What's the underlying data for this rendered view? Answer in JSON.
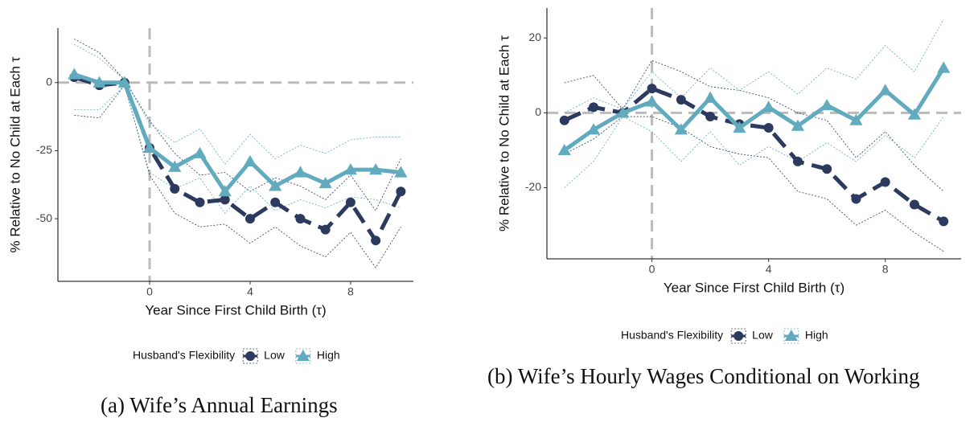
{
  "chart_data": [
    {
      "type": "line",
      "caption": "(a) Wife’s Annual Earnings",
      "x_label": "Year Since First Child Birth (τ)",
      "y_label": "% Relative to No Child at Each τ",
      "legend_title": "Husband's Flexibility",
      "x": [
        -3,
        -2,
        -1,
        0,
        1,
        2,
        3,
        4,
        5,
        6,
        7,
        8,
        9,
        10
      ],
      "xlim": [
        -3.65,
        10.5
      ],
      "ylim": [
        -73,
        20
      ],
      "xticks": [
        0,
        4,
        8
      ],
      "yticks": [
        -50,
        -25,
        0
      ],
      "vline": 0,
      "hline": 0,
      "series": [
        {
          "name": "Low",
          "color": "#2b3a5e",
          "marker": "circle",
          "linestyle": "dashed",
          "values": [
            2,
            -1,
            0,
            -24,
            -39,
            -44,
            -43,
            -50,
            -44,
            -50,
            -54,
            -44,
            -58,
            -40
          ],
          "upper": [
            16,
            11,
            1,
            -14,
            -26,
            -34,
            -33,
            -40,
            -35,
            -38,
            -43,
            -34,
            -47,
            -28
          ],
          "lower": [
            -12,
            -13,
            -1,
            -34,
            -48,
            -53,
            -52,
            -59,
            -53,
            -60,
            -64,
            -55,
            -68,
            -53
          ]
        },
        {
          "name": "High",
          "color": "#62abbe",
          "marker": "triangle",
          "linestyle": "solid",
          "values": [
            3,
            0,
            0,
            -24,
            -31,
            -26,
            -40,
            -29,
            -38,
            -33,
            -37,
            -32,
            -32,
            -33
          ],
          "upper": [
            14,
            9,
            1,
            -15,
            -22,
            -17,
            -30,
            -19,
            -28,
            -23,
            -26,
            -21,
            -20,
            -20
          ],
          "lower": [
            -10,
            -10,
            -1,
            -33,
            -39,
            -35,
            -48,
            -38,
            -47,
            -43,
            -46,
            -42,
            -43,
            -46
          ]
        }
      ]
    },
    {
      "type": "line",
      "caption": "(b) Wife’s Hourly Wages Conditional on Working",
      "x_label": "Year Since First Child Birth (τ)",
      "y_label": "% Relative to No Child at Each τ",
      "legend_title": "Husband's Flexibility",
      "x": [
        -3,
        -2,
        -1,
        0,
        1,
        2,
        3,
        4,
        5,
        6,
        7,
        8,
        9,
        10
      ],
      "xlim": [
        -3.6,
        10.6
      ],
      "ylim": [
        -39,
        28
      ],
      "xticks": [
        0,
        4,
        8
      ],
      "yticks": [
        -20,
        0,
        20
      ],
      "vline": 0,
      "hline": 0,
      "series": [
        {
          "name": "Low",
          "color": "#2b3a5e",
          "marker": "circle",
          "linestyle": "dashed",
          "values": [
            -2,
            1.5,
            0,
            6.5,
            3.5,
            -1,
            -3,
            -4,
            -13,
            -15,
            -23,
            -18.5,
            -24.5,
            -29
          ],
          "upper": [
            8,
            10,
            1,
            14,
            11,
            7,
            6,
            4,
            0,
            -2,
            -12,
            -5,
            -14,
            -21
          ],
          "lower": [
            -11,
            -7,
            -1,
            -1,
            -4,
            -9,
            -11,
            -12,
            -21,
            -23,
            -30,
            -26,
            -32,
            -37
          ]
        },
        {
          "name": "High",
          "color": "#62abbe",
          "marker": "triangle",
          "linestyle": "solid",
          "values": [
            -10,
            -4.5,
            0,
            3,
            -4.5,
            4,
            -4,
            1.5,
            -3.5,
            2,
            -2,
            6,
            -0.5,
            12
          ],
          "upper": [
            0,
            4,
            1,
            11,
            4,
            12,
            6,
            11,
            5,
            12,
            9,
            18,
            11,
            25
          ],
          "lower": [
            -20,
            -13,
            -1,
            -5,
            -13,
            -5,
            -14,
            -9,
            -13,
            -8,
            -13,
            -6,
            -12,
            -1
          ]
        }
      ]
    }
  ]
}
